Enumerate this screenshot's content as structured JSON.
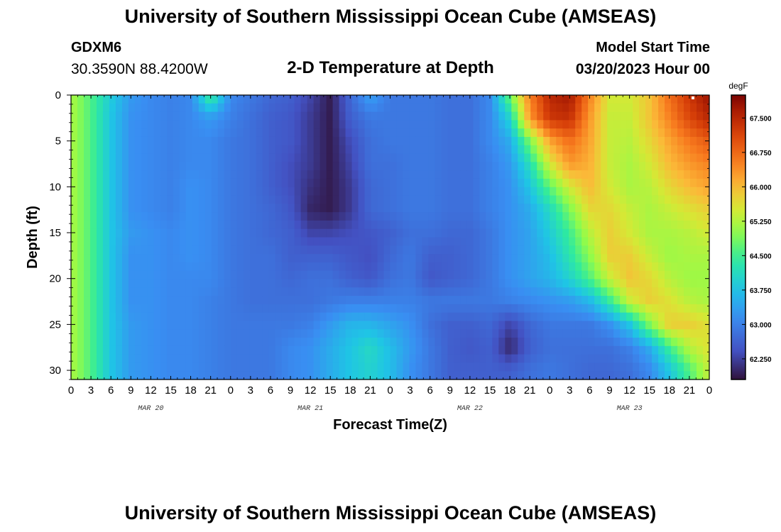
{
  "header": {
    "title": "University of Southern Mississippi Ocean Cube (AMSEAS)",
    "station": "GDXM6",
    "coords": "30.3590N  88.4200W",
    "subtitle": "2-D Temperature at Depth",
    "model_start_label": "Model Start Time",
    "model_start_value": "03/20/2023 Hour 00"
  },
  "footer": {
    "title": "University of Southern Mississippi Ocean Cube (AMSEAS)"
  },
  "chart_data": {
    "type": "heatmap",
    "title": "2-D Temperature at Depth",
    "xlabel": "Forecast Time(Z)",
    "ylabel": "Depth (ft)",
    "x_tick_labels": [
      "0",
      "3",
      "6",
      "9",
      "12",
      "15",
      "18",
      "21",
      "0",
      "3",
      "6",
      "9",
      "12",
      "15",
      "18",
      "21",
      "0",
      "3",
      "6",
      "9",
      "12",
      "15",
      "18",
      "21",
      "0",
      "3",
      "6",
      "9",
      "12",
      "15",
      "18",
      "21",
      "0"
    ],
    "date_labels": [
      {
        "tick": 4,
        "text": "MAR 20"
      },
      {
        "tick": 12,
        "text": "MAR 21"
      },
      {
        "tick": 20,
        "text": "MAR 22"
      },
      {
        "tick": 28,
        "text": "MAR 23"
      }
    ],
    "x_hours_range": [
      0,
      96
    ],
    "y_ticks": [
      0,
      5,
      10,
      15,
      20,
      25,
      30
    ],
    "ylim": [
      0,
      31
    ],
    "y_inverted": true,
    "colorbar": {
      "unit": "degF",
      "min": 61.8,
      "max": 68.0,
      "tick_labels": [
        "62.250",
        "63.000",
        "63.750",
        "64.500",
        "65.250",
        "66.000",
        "66.750",
        "67.500"
      ],
      "tick_values": [
        62.25,
        63.0,
        63.75,
        64.5,
        65.25,
        66.0,
        66.75,
        67.5
      ]
    },
    "grid_hours": [
      0,
      3,
      6,
      9,
      12,
      15,
      18,
      21,
      24,
      27,
      30,
      33,
      36,
      39,
      42,
      45,
      48,
      51,
      54,
      57,
      60,
      63,
      66,
      69,
      72,
      75,
      78,
      81,
      84,
      87,
      90,
      93,
      96
    ],
    "grid_depths_ft": [
      0,
      2.5,
      5,
      7.5,
      10,
      12.5,
      15,
      17.5,
      20,
      22.5,
      25,
      27.5,
      30
    ],
    "values_by_depth": [
      [
        65.2,
        64.6,
        63.9,
        63.3,
        63.1,
        63.0,
        63.1,
        64.6,
        63.1,
        62.9,
        62.7,
        62.6,
        62.3,
        61.9,
        62.7,
        63.4,
        62.9,
        62.9,
        62.9,
        62.8,
        62.8,
        63.1,
        64.8,
        66.5,
        67.5,
        67.7,
        66.5,
        65.5,
        65.5,
        65.9,
        66.7,
        67.3,
        67.8
      ],
      [
        65.2,
        64.6,
        63.8,
        63.2,
        63.1,
        63.0,
        63.1,
        63.3,
        63.0,
        62.8,
        62.6,
        62.5,
        62.2,
        61.9,
        62.6,
        62.9,
        62.9,
        62.9,
        62.9,
        62.8,
        62.8,
        63.1,
        64.0,
        66.3,
        67.3,
        67.4,
        66.3,
        65.4,
        65.4,
        65.9,
        66.5,
        67.1,
        67.5
      ],
      [
        65.2,
        64.6,
        63.8,
        63.2,
        63.1,
        63.0,
        63.1,
        63.1,
        62.9,
        62.8,
        62.6,
        62.5,
        62.2,
        61.9,
        62.4,
        62.8,
        62.9,
        62.9,
        62.9,
        62.8,
        62.8,
        63.1,
        63.5,
        64.9,
        66.2,
        66.7,
        66.2,
        65.4,
        65.3,
        65.7,
        66.2,
        66.6,
        66.9
      ],
      [
        65.2,
        64.6,
        63.8,
        63.2,
        63.1,
        63.0,
        63.1,
        63.1,
        62.9,
        62.8,
        62.6,
        62.4,
        62.2,
        61.9,
        62.3,
        62.8,
        62.8,
        62.9,
        62.9,
        62.8,
        62.8,
        63.0,
        63.3,
        64.2,
        65.5,
        66.3,
        66.1,
        65.4,
        65.2,
        65.5,
        66.0,
        66.3,
        66.5
      ],
      [
        65.2,
        64.6,
        63.8,
        63.2,
        63.1,
        63.0,
        63.2,
        63.1,
        62.9,
        62.8,
        62.6,
        62.4,
        62.1,
        61.9,
        62.2,
        62.7,
        62.8,
        62.9,
        62.9,
        62.8,
        62.8,
        63.0,
        63.2,
        63.8,
        64.7,
        65.5,
        66.0,
        65.5,
        65.2,
        65.3,
        65.7,
        66.0,
        66.2
      ],
      [
        65.2,
        64.6,
        63.8,
        63.2,
        63.1,
        63.0,
        63.2,
        63.1,
        62.9,
        62.8,
        62.7,
        62.5,
        62.0,
        61.9,
        62.2,
        62.7,
        62.8,
        62.9,
        62.9,
        62.8,
        62.8,
        63.0,
        63.2,
        63.5,
        64.1,
        64.9,
        65.7,
        65.7,
        65.4,
        65.2,
        65.4,
        65.6,
        65.8
      ],
      [
        65.2,
        64.6,
        63.8,
        63.3,
        63.2,
        63.1,
        63.2,
        63.1,
        62.9,
        62.8,
        62.7,
        62.6,
        62.3,
        62.3,
        62.4,
        62.5,
        62.6,
        62.8,
        62.8,
        62.7,
        62.7,
        62.9,
        63.2,
        63.4,
        63.9,
        64.5,
        65.3,
        65.8,
        65.5,
        65.2,
        65.2,
        65.3,
        65.5
      ],
      [
        65.2,
        64.6,
        63.8,
        63.2,
        63.2,
        63.1,
        63.2,
        63.1,
        62.9,
        62.8,
        62.8,
        62.6,
        62.6,
        62.6,
        62.5,
        62.4,
        62.7,
        62.9,
        62.6,
        62.6,
        62.7,
        62.9,
        63.2,
        63.4,
        63.7,
        64.3,
        65.0,
        65.8,
        65.8,
        65.4,
        65.1,
        65.2,
        65.2
      ],
      [
        65.2,
        64.6,
        63.8,
        63.2,
        63.2,
        63.1,
        63.1,
        63.1,
        62.9,
        62.8,
        62.8,
        62.7,
        62.8,
        62.8,
        62.6,
        62.5,
        62.8,
        62.9,
        62.5,
        62.6,
        62.7,
        62.9,
        63.2,
        63.4,
        63.6,
        64.0,
        64.6,
        65.4,
        65.9,
        65.7,
        65.3,
        65.1,
        65.1
      ],
      [
        65.2,
        64.6,
        63.8,
        63.2,
        63.2,
        63.1,
        63.1,
        63.0,
        62.9,
        62.8,
        62.8,
        62.8,
        62.8,
        62.9,
        63.0,
        63.0,
        63.0,
        63.0,
        62.9,
        62.9,
        62.9,
        62.9,
        63.0,
        63.1,
        63.2,
        63.3,
        63.6,
        64.4,
        65.4,
        65.8,
        65.6,
        65.3,
        65.2
      ],
      [
        65.2,
        64.6,
        63.8,
        63.3,
        63.2,
        63.1,
        63.1,
        63.0,
        62.9,
        62.9,
        62.9,
        62.9,
        63.0,
        63.3,
        63.6,
        63.6,
        63.4,
        63.2,
        62.8,
        62.6,
        62.6,
        62.7,
        62.3,
        62.7,
        62.9,
        62.9,
        62.9,
        63.2,
        63.8,
        64.9,
        65.8,
        65.8,
        65.6
      ],
      [
        65.2,
        64.6,
        63.8,
        63.3,
        63.2,
        63.1,
        63.1,
        63.0,
        62.9,
        62.9,
        62.9,
        63.1,
        63.2,
        63.5,
        63.8,
        64.1,
        63.7,
        63.3,
        62.9,
        62.6,
        62.5,
        62.6,
        62.0,
        62.6,
        62.8,
        62.8,
        62.8,
        62.8,
        63.0,
        63.5,
        64.5,
        65.3,
        65.6
      ],
      [
        65.2,
        64.6,
        63.8,
        63.3,
        63.2,
        63.1,
        63.1,
        63.0,
        62.9,
        62.9,
        62.9,
        63.1,
        63.2,
        63.5,
        63.8,
        64.0,
        63.7,
        63.2,
        62.9,
        62.6,
        62.6,
        62.6,
        62.6,
        62.8,
        62.9,
        62.8,
        62.7,
        62.7,
        62.8,
        63.1,
        63.8,
        64.6,
        65.4
      ]
    ]
  }
}
